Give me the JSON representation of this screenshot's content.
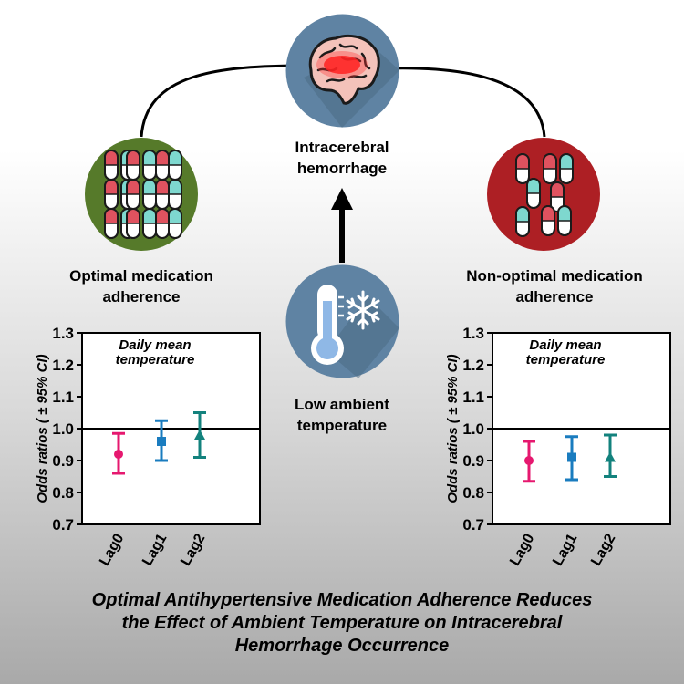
{
  "nodes": {
    "top": {
      "lines": [
        "Intracerebral",
        "hemorrhage"
      ]
    },
    "center": {
      "lines": [
        "Low ambient",
        "temperature"
      ]
    },
    "left": {
      "lines": [
        "Optimal medication",
        "adherence"
      ]
    },
    "right": {
      "lines": [
        "Non-optimal medication",
        "adherence"
      ]
    }
  },
  "footer": {
    "lines": [
      "Optimal Antihypertensive Medication Adherence Reduces",
      "the Effect of Ambient Temperature on Intracerebral",
      "Hemorrhage Occurrence"
    ]
  },
  "colors": {
    "green_circle": "#567a2a",
    "red_circle": "#ad1f24",
    "blue_circle": "#5f83a3",
    "pill_red": "#e0525f",
    "pill_teal": "#7ed8cf",
    "lag0": "#e6186f",
    "lag1": "#1a7cbf",
    "lag2": "#13827d"
  },
  "icons": [
    "brain-icon",
    "thermometer-icon",
    "snowflake-icon",
    "pills-icon"
  ],
  "chart_data": [
    {
      "type": "scatter",
      "panel": "optimal-medication-adherence",
      "annotation_lines": [
        "Daily mean",
        "temperature"
      ],
      "ylabel": "Odds ratios ( ± 95% CI)",
      "ylim": [
        0.7,
        1.3
      ],
      "yticks": [
        "0.7",
        "0.8",
        "0.9",
        "1.0",
        "1.1",
        "1.2",
        "1.3"
      ],
      "reference_line": 1.0,
      "categories": [
        "Lag0",
        "Lag1",
        "Lag2"
      ],
      "markers": [
        "circle",
        "square",
        "triangle"
      ],
      "values": [
        0.92,
        0.96,
        0.98
      ],
      "lower": [
        0.86,
        0.9,
        0.91
      ],
      "upper": [
        0.985,
        1.025,
        1.05
      ]
    },
    {
      "type": "scatter",
      "panel": "non-optimal-medication-adherence",
      "annotation_lines": [
        "Daily mean",
        "temperature"
      ],
      "ylabel": "Odds ratios ( ± 95% CI)",
      "ylim": [
        0.7,
        1.3
      ],
      "yticks": [
        "0.7",
        "0.8",
        "0.9",
        "1.0",
        "1.1",
        "1.2",
        "1.3"
      ],
      "reference_line": 1.0,
      "categories": [
        "Lag0",
        "Lag1",
        "Lag2"
      ],
      "markers": [
        "circle",
        "square",
        "triangle"
      ],
      "values": [
        0.9,
        0.91,
        0.91
      ],
      "lower": [
        0.835,
        0.84,
        0.85
      ],
      "upper": [
        0.96,
        0.975,
        0.98
      ]
    }
  ]
}
